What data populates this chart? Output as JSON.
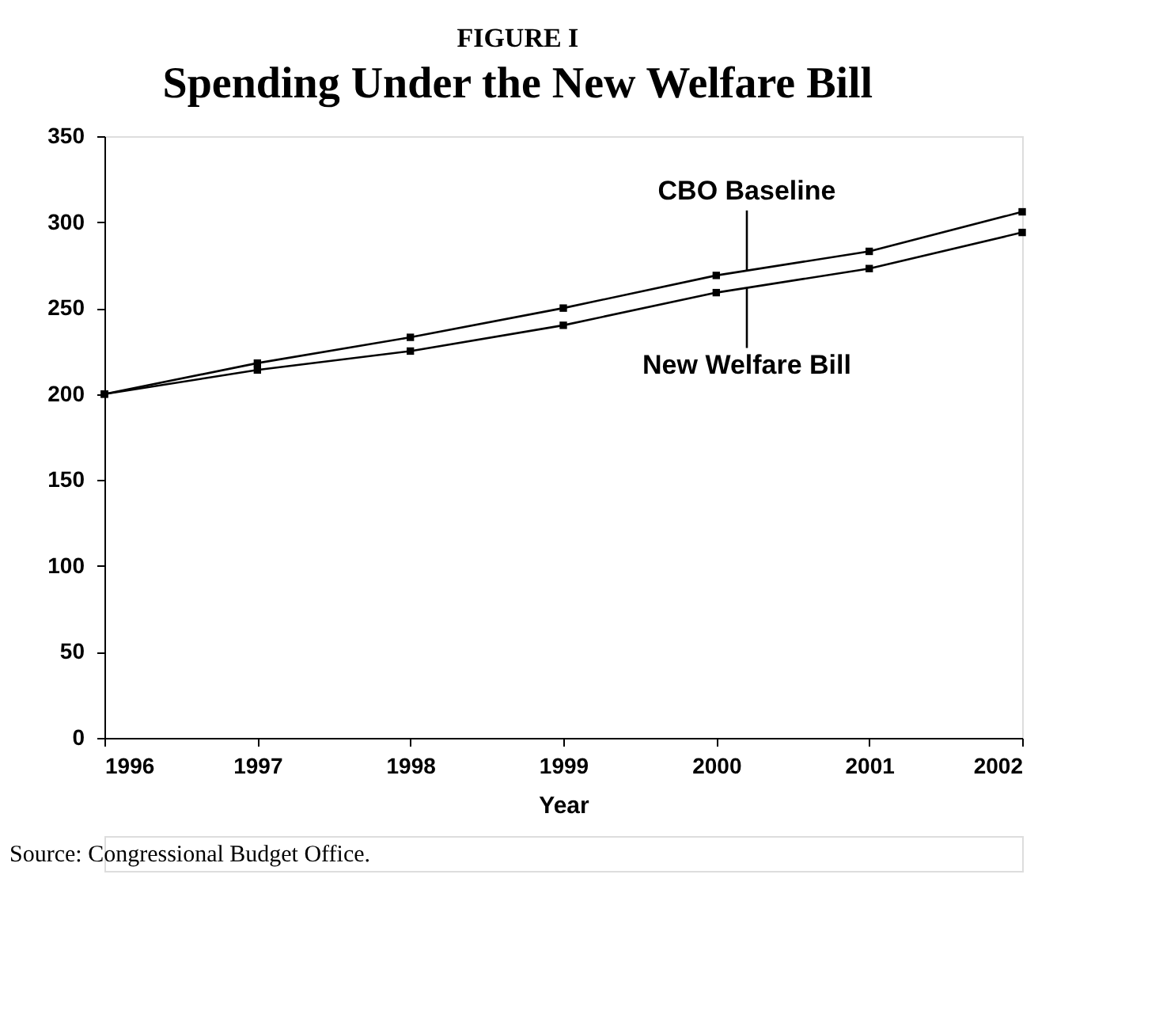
{
  "chart_data": {
    "type": "line",
    "title": "FIGURE I",
    "subtitle": "Spending Under the New Welfare Bill",
    "xlabel": "Year",
    "x": [
      1996,
      1997,
      1998,
      1999,
      2000,
      2001,
      2002
    ],
    "series": [
      {
        "name": "CBO Baseline",
        "color": "#000000",
        "values": [
          200,
          218,
          233,
          250,
          269,
          283,
          306
        ]
      },
      {
        "name": "New Welfare Bill",
        "color": "#000000",
        "values": [
          200,
          214,
          225,
          240,
          259,
          273,
          294
        ]
      }
    ],
    "xlim": [
      1996,
      2002
    ],
    "xticks": [
      1996,
      1997,
      1998,
      1999,
      2000,
      2001,
      2002
    ],
    "ylim": [
      0,
      350
    ],
    "yticks": [
      0,
      50,
      100,
      150,
      200,
      250,
      300,
      350
    ],
    "marker": "square",
    "line_style": "solid",
    "grid": false,
    "annotations": [
      "Source: Congressional Budget Office."
    ]
  }
}
